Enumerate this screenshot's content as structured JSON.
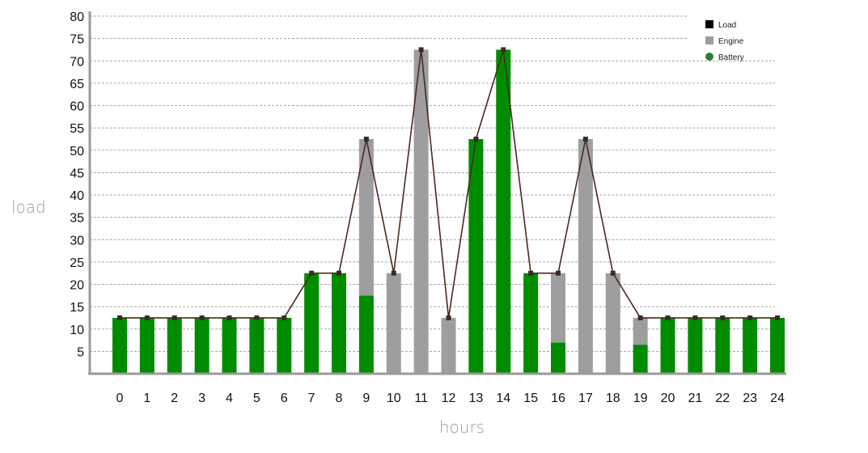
{
  "chart_data": {
    "type": "bar",
    "stacked": true,
    "xlabel": "hours",
    "ylabel": "load",
    "ylim": [
      0,
      80
    ],
    "yticks": [
      5,
      10,
      15,
      20,
      25,
      30,
      35,
      40,
      45,
      50,
      55,
      60,
      65,
      70,
      75,
      80
    ],
    "grid": true,
    "legend_position": "top-right",
    "categories": [
      "0",
      "1",
      "2",
      "3",
      "4",
      "5",
      "6",
      "7",
      "8",
      "9",
      "10",
      "11",
      "12",
      "13",
      "14",
      "15",
      "16",
      "17",
      "18",
      "19",
      "20",
      "21",
      "22",
      "23",
      "24"
    ],
    "series": [
      {
        "name": "Battery",
        "kind": "bar",
        "color": "#008c00",
        "legend_color": "#2e7d32",
        "values": [
          12.5,
          12.5,
          12.5,
          12.5,
          12.5,
          12.5,
          12.5,
          22.5,
          22.5,
          17.5,
          0,
          0,
          0,
          52.5,
          72.5,
          22.5,
          7,
          0,
          0,
          6.5,
          12.5,
          12.5,
          12.5,
          12.5,
          12.5
        ]
      },
      {
        "name": "Engine",
        "kind": "bar",
        "color": "#9e9e9e",
        "legend_color": "#9e9e9e",
        "values": [
          0,
          0,
          0,
          0,
          0,
          0,
          0,
          0,
          0,
          35,
          22.5,
          72.5,
          12.5,
          0,
          0,
          0,
          15.5,
          52.5,
          22.5,
          6,
          0,
          0,
          0,
          0,
          0
        ]
      },
      {
        "name": "Load",
        "kind": "line",
        "color": "#4a2a1f",
        "legend_color": "#000000",
        "values": [
          12.5,
          12.5,
          12.5,
          12.5,
          12.5,
          12.5,
          12.5,
          22.5,
          22.5,
          52.5,
          22.5,
          72.5,
          12.5,
          52.5,
          72.5,
          22.5,
          22.5,
          52.5,
          22.5,
          12.5,
          12.5,
          12.5,
          12.5,
          12.5,
          12.5
        ]
      }
    ],
    "legend": [
      {
        "label": "Load",
        "marker": "square",
        "color": "#000000"
      },
      {
        "label": "Engine",
        "marker": "square",
        "color": "#9e9e9e"
      },
      {
        "label": "Battery",
        "marker": "circle",
        "color": "#2e7d32"
      }
    ]
  }
}
